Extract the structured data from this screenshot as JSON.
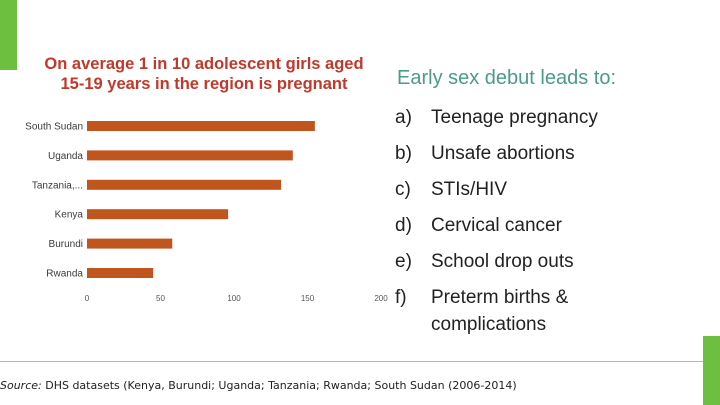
{
  "accent_color": "#6cbf3f",
  "chart_data": {
    "type": "bar",
    "orientation": "horizontal",
    "title": "On average 1 in 10 adolescent girls aged 15-19 years in the region is pregnant",
    "categories": [
      "South Sudan",
      "Uganda",
      "Tanzania,...",
      "Kenya",
      "Burundi",
      "Rwanda"
    ],
    "values": [
      155,
      140,
      132,
      96,
      58,
      45
    ],
    "xlim": [
      0,
      200
    ],
    "xticks": [
      0,
      50,
      100,
      150,
      200
    ],
    "xlabel": "",
    "ylabel": "",
    "bar_color": "#c0551e",
    "grid": false,
    "legend": "none"
  },
  "right_panel": {
    "title": "Early sex debut leads to:",
    "items": [
      {
        "marker": "a)",
        "text": "Teenage pregnancy"
      },
      {
        "marker": "b)",
        "text": "Unsafe abortions"
      },
      {
        "marker": "c)",
        "text": "STIs/HIV"
      },
      {
        "marker": "d)",
        "text": "Cervical cancer"
      },
      {
        "marker": "e)",
        "text": "School drop outs"
      },
      {
        "marker": "f)",
        "text": "Preterm births & complications"
      }
    ]
  },
  "source": {
    "lead": "Source:",
    "text": " DHS datasets (Kenya, Burundi; Uganda; Tanzania; Rwanda; South Sudan (2006-2014)"
  }
}
